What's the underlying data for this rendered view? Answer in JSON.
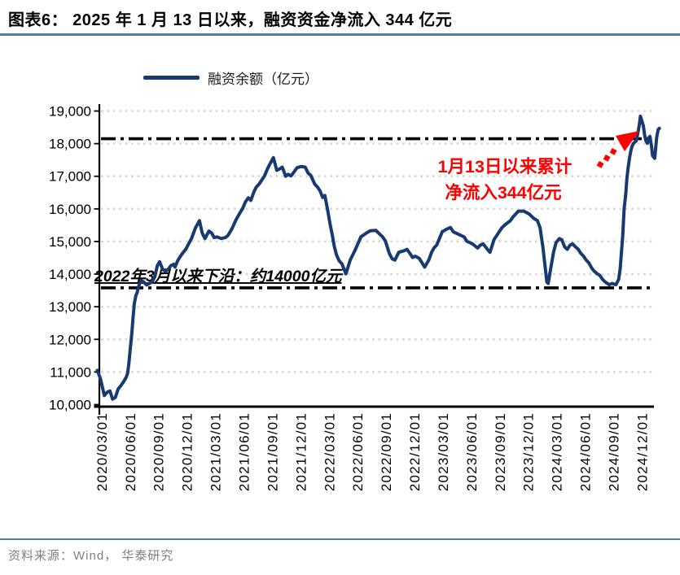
{
  "header": {
    "title": "图表6：  2025 年 1 月 13 日以来，融资资金净流入 344 亿元"
  },
  "footer": {
    "source": "资料来源：Wind， 华泰研究"
  },
  "colors": {
    "series_navy": "#193a70",
    "annotation_red": "#ff0000",
    "rule_steel_blue": "#4f7ca8",
    "gridline_gray": "#d9d9d9",
    "axis_black": "#000000",
    "source_gray": "#7f7f7f"
  },
  "chart_data": {
    "type": "line",
    "title": "2025 年 1 月 13 日以来，融资资金净流入 344 亿元",
    "legend_label": "融资余额（亿元）",
    "legend_position": "top",
    "grid": "horizontal-dotted",
    "ylim": [
      10000,
      19000
    ],
    "y_ticks": [
      "10,000",
      "11,000",
      "12,000",
      "13,000",
      "14,000",
      "15,000",
      "16,000",
      "17,000",
      "18,000",
      "19,000"
    ],
    "x_ticks": [
      "2020/03/01",
      "2020/06/01",
      "2020/09/01",
      "2020/12/01",
      "2021/03/01",
      "2021/06/01",
      "2021/09/01",
      "2021/12/01",
      "2022/03/01",
      "2022/06/01",
      "2022/09/01",
      "2022/12/01",
      "2023/03/01",
      "2023/06/01",
      "2023/09/01",
      "2023/12/01",
      "2024/03/01",
      "2024/06/01",
      "2024/09/01",
      "2024/12/01"
    ],
    "reference_lines": [
      {
        "value": 18150,
        "style": "dash-dot",
        "color": "#000000"
      },
      {
        "value": 13580,
        "style": "dash-dot",
        "color": "#000000"
      }
    ],
    "annotations": {
      "inflow_line1": "1月13日以来累计",
      "inflow_line2": "净流入344亿元",
      "inflow_color": "#ff0000",
      "lower_band": "2022年3月以来下沿：约14000亿元",
      "lower_band_color": "#000000"
    },
    "series": [
      {
        "name": "融资余额（亿元）",
        "color": "#193a70",
        "points": [
          [
            "2020/02/16",
            11050
          ],
          [
            "2020/02/26",
            10800
          ],
          [
            "2020/03/08",
            10280
          ],
          [
            "2020/03/17",
            10380
          ],
          [
            "2020/03/26",
            10420
          ],
          [
            "2020/04/04",
            10170
          ],
          [
            "2020/04/13",
            10220
          ],
          [
            "2020/04/22",
            10480
          ],
          [
            "2020/04/30",
            10570
          ],
          [
            "2020/05/09",
            10700
          ],
          [
            "2020/05/17",
            10830
          ],
          [
            "2020/05/22",
            10960
          ],
          [
            "2020/05/26",
            11250
          ],
          [
            "2020/05/30",
            11670
          ],
          [
            "2020/06/05",
            12170
          ],
          [
            "2020/06/09",
            12670
          ],
          [
            "2020/06/13",
            13090
          ],
          [
            "2020/06/18",
            13340
          ],
          [
            "2020/06/22",
            13430
          ],
          [
            "2020/06/26",
            13590
          ],
          [
            "2020/06/30",
            13710
          ],
          [
            "2020/07/05",
            13800
          ],
          [
            "2020/07/13",
            13760
          ],
          [
            "2020/07/22",
            13670
          ],
          [
            "2020/07/30",
            13710
          ],
          [
            "2020/08/09",
            13760
          ],
          [
            "2020/08/18",
            13920
          ],
          [
            "2020/08/26",
            14260
          ],
          [
            "2020/09/03",
            14380
          ],
          [
            "2020/09/13",
            14140
          ],
          [
            "2020/09/22",
            14090
          ],
          [
            "2020/09/30",
            14140
          ],
          [
            "2020/10/09",
            14260
          ],
          [
            "2020/10/18",
            14300
          ],
          [
            "2020/10/22",
            14215
          ],
          [
            "2020/10/31",
            14420
          ],
          [
            "2020/11/09",
            14550
          ],
          [
            "2020/11/18",
            14670
          ],
          [
            "2020/11/26",
            14760
          ],
          [
            "2020/12/14",
            15090
          ],
          [
            "2020/12/27",
            15420
          ],
          [
            "2021/01/09",
            15640
          ],
          [
            "2021/01/18",
            15260
          ],
          [
            "2021/01/27",
            15090
          ],
          [
            "2021/02/09",
            15320
          ],
          [
            "2021/02/18",
            15260
          ],
          [
            "2021/02/26",
            15120
          ],
          [
            "2021/03/05",
            15140
          ],
          [
            "2021/03/18",
            15090
          ],
          [
            "2021/04/01",
            15120
          ],
          [
            "2021/04/09",
            15180
          ],
          [
            "2021/04/22",
            15390
          ],
          [
            "2021/05/05",
            15670
          ],
          [
            "2021/05/18",
            15890
          ],
          [
            "2021/05/26",
            16010
          ],
          [
            "2021/06/05",
            16220
          ],
          [
            "2021/06/14",
            16340
          ],
          [
            "2021/06/22",
            16260
          ],
          [
            "2021/07/01",
            16510
          ],
          [
            "2021/07/09",
            16670
          ],
          [
            "2021/07/18",
            16760
          ],
          [
            "2021/07/27",
            16890
          ],
          [
            "2021/08/05",
            17010
          ],
          [
            "2021/08/14",
            17220
          ],
          [
            "2021/08/23",
            17390
          ],
          [
            "2021/09/03",
            17570
          ],
          [
            "2021/09/14",
            17180
          ],
          [
            "2021/09/22",
            17220
          ],
          [
            "2021/10/01",
            17280
          ],
          [
            "2021/10/12",
            17000
          ],
          [
            "2021/10/20",
            17060
          ],
          [
            "2021/10/29",
            17010
          ],
          [
            "2021/11/09",
            17140
          ],
          [
            "2021/11/18",
            17260
          ],
          [
            "2021/12/01",
            17300
          ],
          [
            "2021/12/14",
            17280
          ],
          [
            "2021/12/23",
            17100
          ],
          [
            "2022/01/01",
            17030
          ],
          [
            "2022/01/14",
            16760
          ],
          [
            "2022/01/23",
            16670
          ],
          [
            "2022/02/01",
            16550
          ],
          [
            "2022/02/09",
            16350
          ],
          [
            "2022/02/16",
            16410
          ],
          [
            "2022/02/25",
            15970
          ],
          [
            "2022/03/03",
            15510
          ],
          [
            "2022/03/10",
            15180
          ],
          [
            "2022/03/16",
            14850
          ],
          [
            "2022/03/23",
            14590
          ],
          [
            "2022/04/01",
            14410
          ],
          [
            "2022/04/10",
            14320
          ],
          [
            "2022/04/23",
            14010
          ],
          [
            "2022/05/06",
            14430
          ],
          [
            "2022/05/23",
            14760
          ],
          [
            "2022/06/10",
            15140
          ],
          [
            "2022/06/28",
            15260
          ],
          [
            "2022/07/10",
            15330
          ],
          [
            "2022/07/28",
            15340
          ],
          [
            "2022/08/10",
            15220
          ],
          [
            "2022/08/19",
            15140
          ],
          [
            "2022/08/28",
            15010
          ],
          [
            "2022/09/10",
            14640
          ],
          [
            "2022/09/19",
            14470
          ],
          [
            "2022/09/28",
            14430
          ],
          [
            "2022/10/10",
            14670
          ],
          [
            "2022/10/28",
            14720
          ],
          [
            "2022/11/06",
            14760
          ],
          [
            "2022/11/15",
            14640
          ],
          [
            "2022/11/24",
            14510
          ],
          [
            "2022/12/02",
            14550
          ],
          [
            "2022/12/15",
            14480
          ],
          [
            "2023/01/02",
            14215
          ],
          [
            "2023/01/15",
            14430
          ],
          [
            "2023/01/24",
            14670
          ],
          [
            "2023/02/01",
            14800
          ],
          [
            "2023/02/10",
            14890
          ],
          [
            "2023/02/28",
            15300
          ],
          [
            "2023/03/12",
            15380
          ],
          [
            "2023/03/24",
            15430
          ],
          [
            "2023/04/02",
            15300
          ],
          [
            "2023/04/19",
            15220
          ],
          [
            "2023/05/07",
            15140
          ],
          [
            "2023/05/15",
            15010
          ],
          [
            "2023/06/03",
            14930
          ],
          [
            "2023/06/20",
            14800
          ],
          [
            "2023/06/28",
            14890
          ],
          [
            "2023/07/07",
            14930
          ],
          [
            "2023/07/24",
            14720
          ],
          [
            "2023/07/29",
            14670
          ],
          [
            "2023/08/11",
            15050
          ],
          [
            "2023/08/20",
            15180
          ],
          [
            "2023/08/28",
            15300
          ],
          [
            "2023/09/07",
            15430
          ],
          [
            "2023/09/16",
            15510
          ],
          [
            "2023/10/03",
            15640
          ],
          [
            "2023/10/12",
            15760
          ],
          [
            "2023/10/29",
            15930
          ],
          [
            "2023/11/16",
            15930
          ],
          [
            "2023/12/03",
            15840
          ],
          [
            "2023/12/16",
            15720
          ],
          [
            "2023/12/29",
            15640
          ],
          [
            "2024/01/07",
            15430
          ],
          [
            "2024/01/16",
            14840
          ],
          [
            "2024/01/20",
            14510
          ],
          [
            "2024/01/29",
            13760
          ],
          [
            "2024/02/03",
            13715
          ],
          [
            "2024/02/11",
            14180
          ],
          [
            "2024/02/20",
            14670
          ],
          [
            "2024/02/28",
            14965
          ],
          [
            "2024/03/08",
            15090
          ],
          [
            "2024/03/16",
            15050
          ],
          [
            "2024/03/25",
            14840
          ],
          [
            "2024/04/03",
            14760
          ],
          [
            "2024/04/12",
            14890
          ],
          [
            "2024/04/20",
            14930
          ],
          [
            "2024/04/29",
            14840
          ],
          [
            "2024/05/08",
            14760
          ],
          [
            "2024/05/16",
            14640
          ],
          [
            "2024/05/25",
            14550
          ],
          [
            "2024/06/03",
            14430
          ],
          [
            "2024/06/12",
            14340
          ],
          [
            "2024/06/21",
            14180
          ],
          [
            "2024/06/29",
            14090
          ],
          [
            "2024/07/08",
            14010
          ],
          [
            "2024/07/16",
            13965
          ],
          [
            "2024/07/25",
            13840
          ],
          [
            "2024/08/03",
            13760
          ],
          [
            "2024/08/16",
            13675
          ],
          [
            "2024/08/25",
            13715
          ],
          [
            "2024/09/07",
            13675
          ],
          [
            "2024/09/16",
            13840
          ],
          [
            "2024/09/21",
            14180
          ],
          [
            "2024/09/25",
            14670
          ],
          [
            "2024/09/29",
            15180
          ],
          [
            "2024/10/03",
            16010
          ],
          [
            "2024/10/08",
            16430
          ],
          [
            "2024/10/12",
            16930
          ],
          [
            "2024/10/16",
            17260
          ],
          [
            "2024/10/21",
            17590
          ],
          [
            "2024/10/25",
            17800
          ],
          [
            "2024/10/29",
            17930
          ],
          [
            "2024/11/03",
            18010
          ],
          [
            "2024/11/12",
            18090
          ],
          [
            "2024/11/16",
            18300
          ],
          [
            "2024/11/21",
            18550
          ],
          [
            "2024/11/25",
            18840
          ],
          [
            "2024/12/04",
            18550
          ],
          [
            "2024/12/08",
            18260
          ],
          [
            "2024/12/12",
            18090
          ],
          [
            "2024/12/17",
            18010
          ],
          [
            "2024/12/21",
            18180
          ],
          [
            "2024/12/25",
            18220
          ],
          [
            "2024/12/30",
            17930
          ],
          [
            "2025/01/03",
            17630
          ],
          [
            "2025/01/10",
            17550
          ],
          [
            "2025/01/16",
            18180
          ],
          [
            "2025/01/21",
            18430
          ],
          [
            "2025/01/25",
            18470
          ]
        ]
      }
    ]
  }
}
